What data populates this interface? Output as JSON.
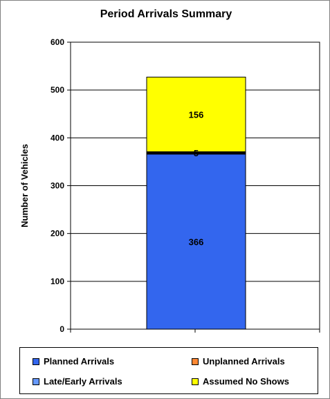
{
  "chart_data": {
    "type": "bar",
    "stacked": true,
    "title": "Period Arrivals Summary",
    "xlabel": "",
    "ylabel": "Number of Vehicles",
    "ylim": [
      0,
      600
    ],
    "yticks": [
      0,
      100,
      200,
      300,
      400,
      500,
      600
    ],
    "gridlines": true,
    "legend_position": "bottom",
    "series": [
      {
        "name": "Planned Arrivals",
        "value": 366,
        "label": "366",
        "color": "#3366ee"
      },
      {
        "name": "Unplanned Arrivals",
        "value": 0,
        "label": "",
        "color": "#ff8833"
      },
      {
        "name": "Late/Early Arrivals",
        "value": 0,
        "label": "",
        "color": "#6699ff"
      },
      {
        "name": "Separator",
        "value": 5,
        "label": "5",
        "color": "#000000",
        "in_legend": false
      },
      {
        "name": "Assumed No Shows",
        "value": 156,
        "label": "156",
        "color": "#ffff00"
      }
    ],
    "legend": [
      {
        "name": "Planned Arrivals",
        "color": "#3366ee"
      },
      {
        "name": "Unplanned Arrivals",
        "color": "#ff8833"
      },
      {
        "name": "Late/Early Arrivals",
        "color": "#6699ff"
      },
      {
        "name": "Assumed No Shows",
        "color": "#ffff00"
      }
    ]
  }
}
